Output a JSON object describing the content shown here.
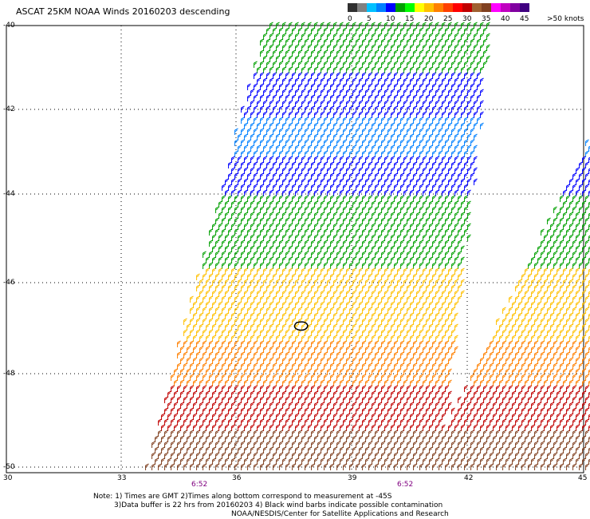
{
  "title": "ASCAT 25KM NOAA Winds 20160203 descending",
  "colorbar": {
    "unit_label": ">50 knots",
    "ticks": [
      "0",
      "5",
      "10",
      "15",
      "20",
      "25",
      "30",
      "35",
      "40",
      "45"
    ],
    "colors": [
      "#303030",
      "#808080",
      "#00c0ff",
      "#0080ff",
      "#0000ff",
      "#00a000",
      "#00ff00",
      "#ffff00",
      "#ffc000",
      "#ff8000",
      "#ff4000",
      "#ff0000",
      "#c00000",
      "#a06030",
      "#804020",
      "#ff00ff",
      "#c000c0",
      "#8000a0",
      "#400080"
    ]
  },
  "axes": {
    "lat_labels": [
      "-40",
      "-42",
      "-44",
      "-46",
      "-48",
      "-50"
    ],
    "lon_labels": [
      "30",
      "33",
      "36",
      "39",
      "42",
      "45"
    ],
    "time_labels": [
      "6:52",
      "6:52"
    ]
  },
  "notes": {
    "line1": "Note: 1) Times are GMT 2)Times along bottom correspond to measurement at -45S",
    "line2": "3)Data buffer is 22 hrs from 20160203 4) Black wind barbs indicate possible contamination",
    "line3": "NOAA/NESDIS/Center for Satellite Applications and Research"
  }
}
